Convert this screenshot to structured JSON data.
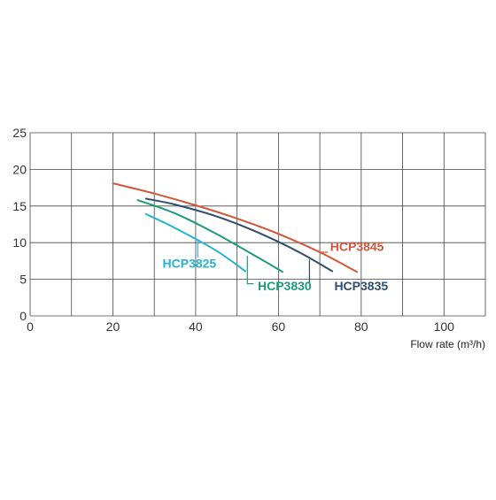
{
  "chart_data": {
    "type": "line",
    "title": "",
    "xlabel": "Flow rate (m³/h)",
    "ylabel": "",
    "xlim": [
      0,
      110
    ],
    "ylim": [
      0,
      25
    ],
    "xticks": [
      0,
      20,
      40,
      60,
      80,
      100
    ],
    "xtick_labels": [
      "0",
      "20",
      "40",
      "60",
      "80",
      "100"
    ],
    "yticks": [
      0,
      5,
      10,
      15,
      20,
      25
    ],
    "ytick_labels": [
      "0",
      "5",
      "10",
      "15",
      "20",
      "25"
    ],
    "grid": true,
    "legend": "inline labels",
    "series": [
      {
        "name": "HCP3845",
        "color": "#d4553a",
        "x": [
          20,
          30,
          40,
          50,
          60,
          70,
          79
        ],
        "y": [
          18.1,
          16.7,
          15.1,
          13.3,
          11.2,
          8.7,
          6.0
        ]
      },
      {
        "name": "HCP3835",
        "color": "#2d4e6e",
        "x": [
          28,
          35,
          45,
          55,
          65,
          73
        ],
        "y": [
          16.0,
          15.2,
          13.6,
          11.4,
          8.7,
          6.1
        ]
      },
      {
        "name": "HCP3830",
        "color": "#1a9b7c",
        "x": [
          26,
          35,
          45,
          55,
          61
        ],
        "y": [
          15.8,
          14.0,
          11.2,
          8.0,
          6.0
        ]
      },
      {
        "name": "HCP3825",
        "color": "#26b3cf",
        "x": [
          28,
          35,
          45,
          52
        ],
        "y": [
          13.9,
          12.0,
          8.9,
          6.1
        ]
      }
    ]
  }
}
